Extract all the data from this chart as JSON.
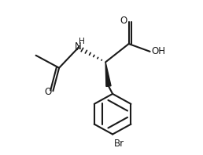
{
  "background_color": "#ffffff",
  "line_color": "#1a1a1a",
  "line_width": 1.5,
  "font_size": 8.5,
  "fig_width": 2.58,
  "fig_height": 1.98,
  "dpi": 100,
  "xlim": [
    0,
    10
  ],
  "ylim": [
    0,
    8
  ]
}
